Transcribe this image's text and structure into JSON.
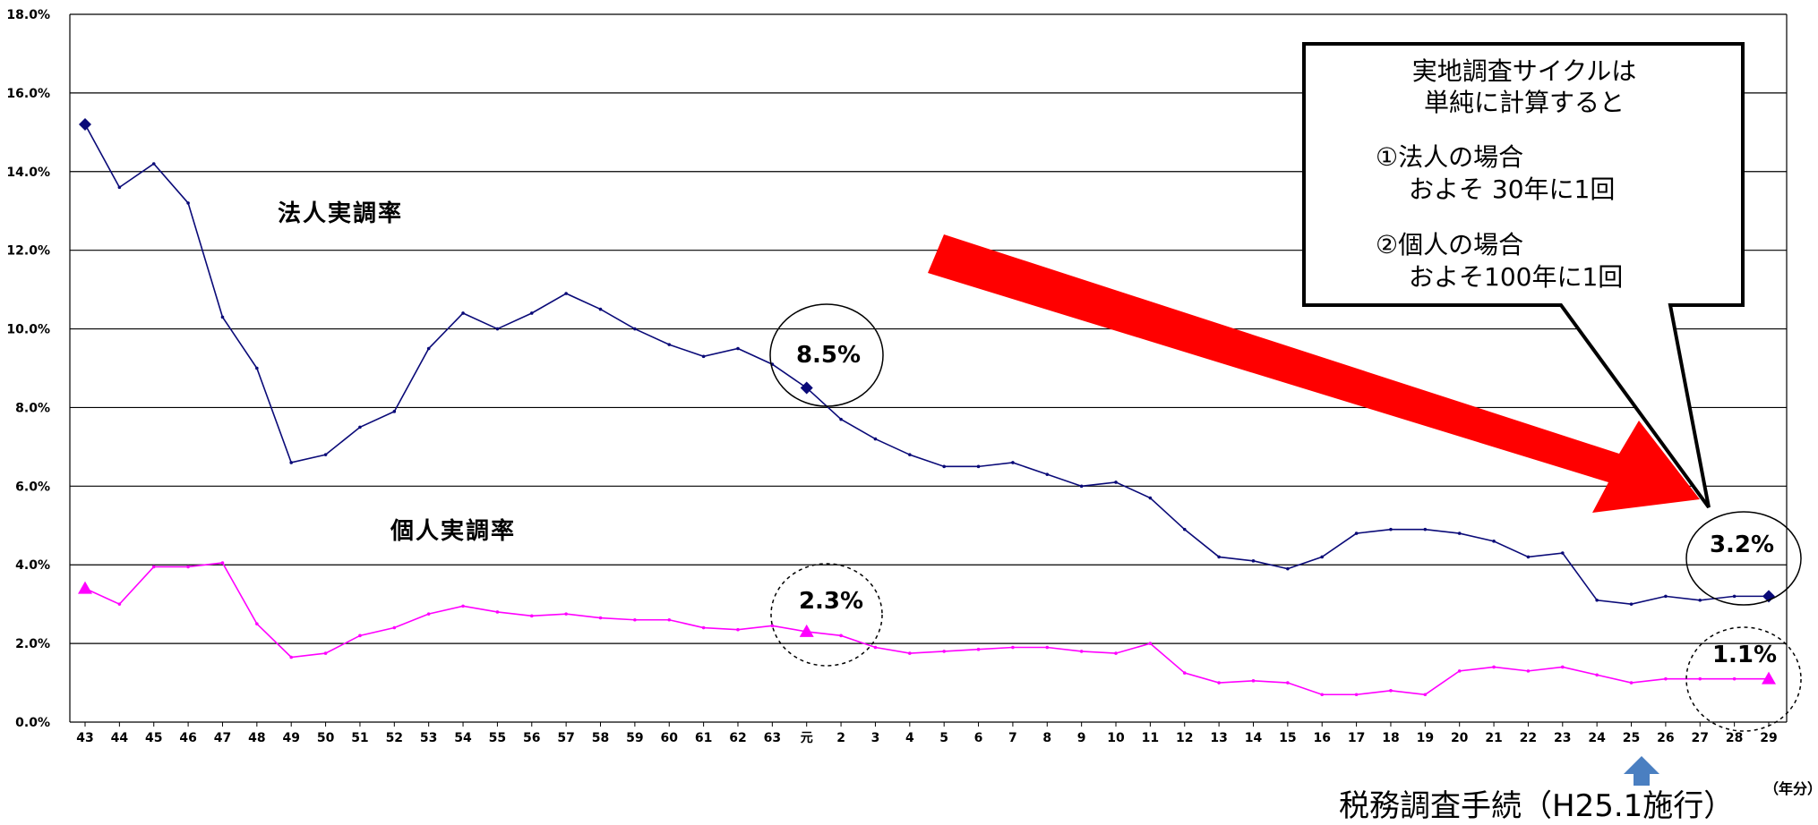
{
  "chart_data": {
    "type": "line",
    "title": "",
    "xlabel": "",
    "ylabel": "",
    "x_unit_label": "（年分）",
    "ylim": [
      0,
      18
    ],
    "y_ticks": [
      "0.0%",
      "2.0%",
      "4.0%",
      "6.0%",
      "8.0%",
      "10.0%",
      "12.0%",
      "14.0%",
      "16.0%",
      "18.0%"
    ],
    "categories": [
      "43",
      "44",
      "45",
      "46",
      "47",
      "48",
      "49",
      "50",
      "51",
      "52",
      "53",
      "54",
      "55",
      "56",
      "57",
      "58",
      "59",
      "60",
      "61",
      "62",
      "63",
      "元",
      "2",
      "3",
      "4",
      "5",
      "6",
      "7",
      "8",
      "9",
      "10",
      "11",
      "12",
      "13",
      "14",
      "15",
      "16",
      "17",
      "18",
      "19",
      "20",
      "21",
      "22",
      "23",
      "24",
      "25",
      "26",
      "27",
      "28",
      "29"
    ],
    "grid": true,
    "legend": "none",
    "series": [
      {
        "name": "法人実調率",
        "color": "#0a0a78",
        "values": [
          15.2,
          13.6,
          14.2,
          13.2,
          10.3,
          9.0,
          6.6,
          6.8,
          7.5,
          7.9,
          9.5,
          10.4,
          10.0,
          10.4,
          10.9,
          10.5,
          10.0,
          9.6,
          9.3,
          9.5,
          9.1,
          8.5,
          7.7,
          7.2,
          6.8,
          6.5,
          6.5,
          6.6,
          6.3,
          6.0,
          6.1,
          5.7,
          4.9,
          4.2,
          4.1,
          3.9,
          4.2,
          4.8,
          4.9,
          4.9,
          4.8,
          4.6,
          4.2,
          4.3,
          3.1,
          3.0,
          3.2,
          3.1,
          3.2,
          3.2
        ]
      },
      {
        "name": "個人実調率",
        "color": "#ff00ff",
        "values": [
          3.4,
          3.0,
          3.95,
          3.95,
          4.05,
          2.5,
          1.65,
          1.75,
          2.2,
          2.4,
          2.75,
          2.95,
          2.8,
          2.7,
          2.75,
          2.65,
          2.6,
          2.6,
          2.4,
          2.35,
          2.45,
          2.3,
          2.2,
          1.9,
          1.75,
          1.8,
          1.85,
          1.9,
          1.9,
          1.8,
          1.75,
          2.0,
          1.25,
          1.0,
          1.05,
          1.0,
          0.7,
          0.7,
          0.8,
          0.7,
          1.3,
          1.4,
          1.3,
          1.4,
          1.2,
          1.0,
          1.1,
          1.1,
          1.1,
          1.1
        ]
      }
    ],
    "annotations": [
      {
        "text": "8.5%",
        "x": "元",
        "y": 8.5,
        "circle": "solid"
      },
      {
        "text": "2.3%",
        "x": "元",
        "y": 2.3,
        "circle": "dashed"
      },
      {
        "text": "3.2%",
        "x": "29",
        "y": 3.2,
        "circle": "solid"
      },
      {
        "text": "1.1%",
        "x": "29",
        "y": 1.1,
        "circle": "dashed"
      }
    ]
  },
  "callout_box": {
    "lines": [
      "実地調査サイクルは",
      "単純に計算すると",
      "①法人の場合",
      "およそ 30年に1回",
      "②個人の場合",
      "およそ100年に1回"
    ]
  },
  "footnote": "税務調査手続（H25.1施行）",
  "colors": {
    "arrow_red": "#ff0000",
    "marker_arrow_blue": "#4a7fc1",
    "grid": "#000000"
  }
}
